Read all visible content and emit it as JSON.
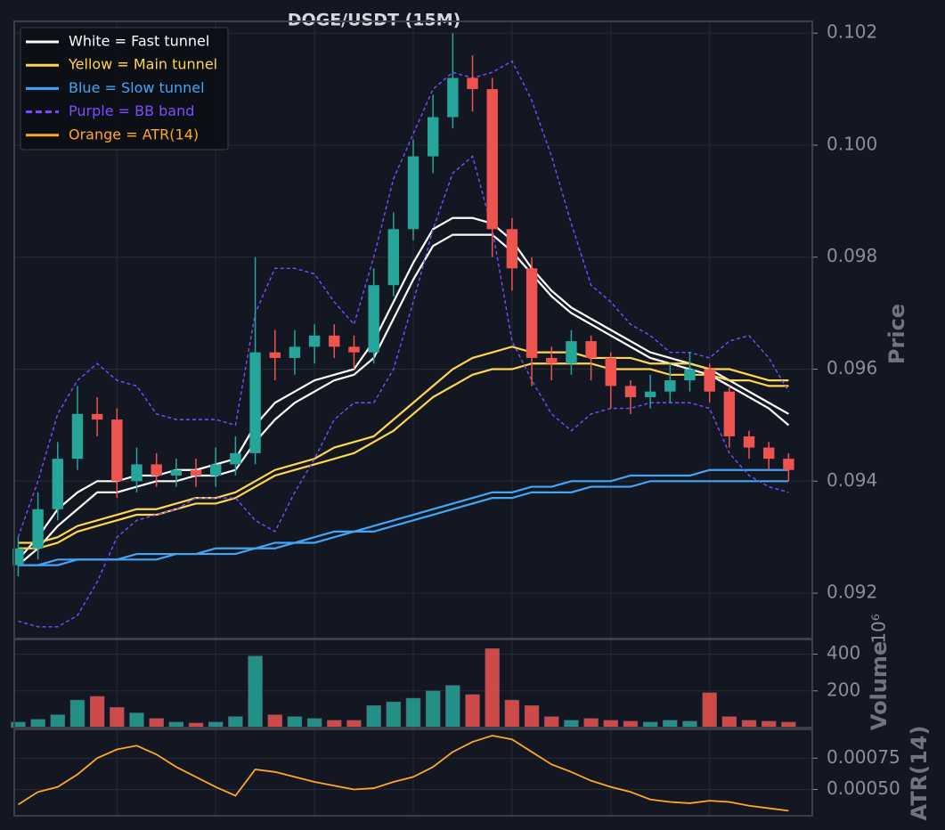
{
  "title": "DOGE/USDT (15M)",
  "chart_data": [
    {
      "type": "candlestick",
      "ylabel": "Price",
      "legend": "upper left",
      "grid": true,
      "xlim": [
        -0.2,
        40.2
      ],
      "xticks": [
        5,
        10,
        15,
        20,
        25,
        30,
        35
      ],
      "ylim": [
        0.09119,
        0.10221
      ],
      "yticks": [
        0.092,
        0.094,
        0.096,
        0.098,
        {
          "value": 0.1,
          "label": "0.100"
        },
        0.102
      ],
      "up_color": "#26a69a",
      "down_color": "#ef5350",
      "open": [
        0.0925,
        0.0928,
        0.0935,
        0.0944,
        0.0952,
        0.0951,
        0.094,
        0.0943,
        0.0941,
        0.0942,
        0.0941,
        0.0943,
        0.0945,
        0.0963,
        0.0962,
        0.0964,
        0.0966,
        0.0964,
        0.0963,
        0.0975,
        0.0985,
        0.0998,
        0.1005,
        0.1012,
        0.101,
        0.0985,
        0.0978,
        0.0962,
        0.0961,
        0.0965,
        0.0962,
        0.0957,
        0.0955,
        0.0956,
        0.0958,
        0.096,
        0.0956,
        0.0948,
        0.0946,
        0.0944
      ],
      "high": [
        0.093,
        0.0938,
        0.0947,
        0.0957,
        0.0955,
        0.0953,
        0.0946,
        0.0945,
        0.0944,
        0.0944,
        0.0946,
        0.0948,
        0.098,
        0.0967,
        0.0967,
        0.0968,
        0.0968,
        0.0966,
        0.0978,
        0.0988,
        0.1001,
        0.1009,
        0.102,
        0.1016,
        0.1012,
        0.0987,
        0.098,
        0.0964,
        0.0967,
        0.0966,
        0.0963,
        0.0958,
        0.0959,
        0.0961,
        0.0963,
        0.0961,
        0.0957,
        0.0949,
        0.0947,
        0.0945
      ],
      "low": [
        0.0923,
        0.0926,
        0.0933,
        0.0942,
        0.0948,
        0.0937,
        0.0938,
        0.0939,
        0.0939,
        0.0939,
        0.0939,
        0.0941,
        0.0943,
        0.0958,
        0.0959,
        0.0961,
        0.0962,
        0.096,
        0.0961,
        0.0973,
        0.0983,
        0.0995,
        0.1003,
        0.1006,
        0.098,
        0.0974,
        0.0957,
        0.0958,
        0.0959,
        0.0958,
        0.0953,
        0.0952,
        0.0953,
        0.0954,
        0.0956,
        0.0954,
        0.0946,
        0.0944,
        0.0942,
        0.094
      ],
      "close": [
        0.0928,
        0.0935,
        0.0944,
        0.0952,
        0.0951,
        0.094,
        0.0943,
        0.0941,
        0.0942,
        0.0941,
        0.0943,
        0.0945,
        0.0963,
        0.0962,
        0.0964,
        0.0966,
        0.0964,
        0.0963,
        0.0975,
        0.0985,
        0.0998,
        0.1005,
        0.1012,
        0.101,
        0.0985,
        0.0978,
        0.0962,
        0.0961,
        0.0965,
        0.0962,
        0.0957,
        0.0955,
        0.0956,
        0.0958,
        0.096,
        0.0956,
        0.0948,
        0.0946,
        0.0944,
        0.0942
      ],
      "series": [
        {
          "name": "White = Fast tunnel",
          "color": "#ffffff",
          "style": "solid",
          "upper": [
            0.0926,
            0.093,
            0.0935,
            0.0938,
            0.094,
            0.094,
            0.0941,
            0.0941,
            0.0942,
            0.0942,
            0.0943,
            0.0944,
            0.095,
            0.0954,
            0.0956,
            0.0958,
            0.0959,
            0.096,
            0.0965,
            0.0972,
            0.0979,
            0.0985,
            0.0987,
            0.0987,
            0.0986,
            0.0983,
            0.0978,
            0.0974,
            0.0971,
            0.0969,
            0.0967,
            0.0965,
            0.0963,
            0.0962,
            0.0961,
            0.096,
            0.0958,
            0.0956,
            0.0954,
            0.0952
          ],
          "lower": [
            0.0925,
            0.0928,
            0.0932,
            0.0935,
            0.0938,
            0.0938,
            0.0939,
            0.094,
            0.094,
            0.0941,
            0.0941,
            0.0942,
            0.0947,
            0.0951,
            0.0954,
            0.0956,
            0.0958,
            0.0959,
            0.0962,
            0.0969,
            0.0976,
            0.0982,
            0.0984,
            0.0984,
            0.0984,
            0.0981,
            0.0977,
            0.0973,
            0.097,
            0.0968,
            0.0966,
            0.0964,
            0.0962,
            0.0961,
            0.096,
            0.0959,
            0.0957,
            0.0955,
            0.0953,
            0.095
          ]
        },
        {
          "name": "Yellow = Main tunnel",
          "color": "#ffd54f",
          "style": "solid",
          "upper": [
            0.0929,
            0.0929,
            0.093,
            0.0932,
            0.0933,
            0.0934,
            0.0935,
            0.0935,
            0.0936,
            0.0937,
            0.0937,
            0.0938,
            0.094,
            0.0942,
            0.0943,
            0.0944,
            0.0946,
            0.0947,
            0.0948,
            0.0951,
            0.0954,
            0.0957,
            0.096,
            0.0962,
            0.0963,
            0.0964,
            0.0963,
            0.0963,
            0.0963,
            0.0962,
            0.0962,
            0.0962,
            0.0961,
            0.0961,
            0.0961,
            0.096,
            0.096,
            0.0959,
            0.0958,
            0.0958
          ],
          "lower": [
            0.0928,
            0.0928,
            0.0929,
            0.0931,
            0.0932,
            0.0933,
            0.0934,
            0.0934,
            0.0935,
            0.0936,
            0.0936,
            0.0937,
            0.0939,
            0.0941,
            0.0942,
            0.0943,
            0.0944,
            0.0945,
            0.0947,
            0.0949,
            0.0952,
            0.0955,
            0.0957,
            0.0959,
            0.096,
            0.096,
            0.0961,
            0.0961,
            0.0961,
            0.0961,
            0.096,
            0.096,
            0.096,
            0.0959,
            0.0959,
            0.0959,
            0.0958,
            0.0958,
            0.0957,
            0.0957
          ]
        },
        {
          "name": "Blue = Slow tunnel",
          "color": "#42a5f5",
          "style": "solid",
          "upper": [
            0.0925,
            0.0925,
            0.0926,
            0.0926,
            0.0926,
            0.0926,
            0.0927,
            0.0927,
            0.0927,
            0.0927,
            0.0928,
            0.0928,
            0.0928,
            0.0929,
            0.0929,
            0.093,
            0.0931,
            0.0931,
            0.0932,
            0.0933,
            0.0934,
            0.0935,
            0.0936,
            0.0937,
            0.0938,
            0.0938,
            0.0939,
            0.0939,
            0.094,
            0.094,
            0.094,
            0.0941,
            0.0941,
            0.0941,
            0.0941,
            0.0942,
            0.0942,
            0.0942,
            0.0942,
            0.0942
          ],
          "lower": [
            0.0925,
            0.0925,
            0.0925,
            0.0926,
            0.0926,
            0.0926,
            0.0926,
            0.0926,
            0.0927,
            0.0927,
            0.0927,
            0.0927,
            0.0928,
            0.0928,
            0.0929,
            0.0929,
            0.093,
            0.0931,
            0.0931,
            0.0932,
            0.0933,
            0.0934,
            0.0935,
            0.0936,
            0.0937,
            0.0937,
            0.0938,
            0.0938,
            0.0938,
            0.0939,
            0.0939,
            0.0939,
            0.094,
            0.094,
            0.094,
            0.094,
            0.094,
            0.094,
            0.094,
            0.094
          ]
        },
        {
          "name": "Purple = BB band",
          "color": "#7c4dff",
          "style": "dashed",
          "upper": [
            0.093,
            0.094,
            0.0952,
            0.0958,
            0.0961,
            0.0958,
            0.0957,
            0.0952,
            0.0951,
            0.0951,
            0.0951,
            0.095,
            0.097,
            0.0978,
            0.0978,
            0.0977,
            0.0972,
            0.0968,
            0.098,
            0.0994,
            0.1002,
            0.101,
            0.1013,
            0.1012,
            0.1013,
            0.1015,
            0.1008,
            0.0998,
            0.0986,
            0.0975,
            0.0972,
            0.0968,
            0.0966,
            0.0963,
            0.0963,
            0.0962,
            0.0965,
            0.0966,
            0.0962,
            0.0956
          ],
          "lower": [
            0.0915,
            0.0914,
            0.0914,
            0.0916,
            0.0922,
            0.093,
            0.0933,
            0.0934,
            0.0935,
            0.0937,
            0.0937,
            0.0937,
            0.0933,
            0.0931,
            0.0938,
            0.0944,
            0.0951,
            0.0954,
            0.0954,
            0.096,
            0.0972,
            0.0985,
            0.0995,
            0.0998,
            0.0985,
            0.0965,
            0.0958,
            0.0952,
            0.0949,
            0.0952,
            0.0953,
            0.0953,
            0.0954,
            0.0954,
            0.0954,
            0.0953,
            0.0945,
            0.0941,
            0.0939,
            0.0938
          ]
        }
      ]
    },
    {
      "type": "bar",
      "ylabel": "Volume",
      "offset_label": "10⁶",
      "grid": true,
      "ylim": [
        0,
        480
      ],
      "yticks": [
        200,
        400
      ],
      "values": [
        30,
        45,
        70,
        150,
        170,
        110,
        80,
        50,
        30,
        25,
        30,
        60,
        390,
        70,
        60,
        50,
        40,
        40,
        120,
        140,
        160,
        200,
        230,
        180,
        430,
        150,
        120,
        60,
        40,
        50,
        40,
        35,
        30,
        40,
        35,
        190,
        60,
        40,
        35,
        30
      ]
    },
    {
      "type": "line",
      "ylabel": "ATR(14)",
      "grid": true,
      "ylim": [
        0.00029,
        0.00098
      ],
      "yticks": [
        {
          "value": 0.0005,
          "label": "0.00050"
        },
        {
          "value": 0.00075,
          "label": "0.00075"
        }
      ],
      "series": [
        {
          "name": "Orange = ATR(14)",
          "color": "#ffa726",
          "values": [
            0.00038,
            0.00048,
            0.00052,
            0.00062,
            0.00075,
            0.00082,
            0.00085,
            0.00078,
            0.00068,
            0.0006,
            0.00052,
            0.00045,
            0.00066,
            0.00064,
            0.0006,
            0.00056,
            0.00053,
            0.0005,
            0.00051,
            0.00056,
            0.0006,
            0.00068,
            0.0008,
            0.00088,
            0.00093,
            0.0009,
            0.0008,
            0.0007,
            0.00064,
            0.00057,
            0.00052,
            0.00048,
            0.00042,
            0.0004,
            0.00039,
            0.00041,
            0.0004,
            0.00037,
            0.00035,
            0.00033
          ]
        }
      ]
    }
  ]
}
